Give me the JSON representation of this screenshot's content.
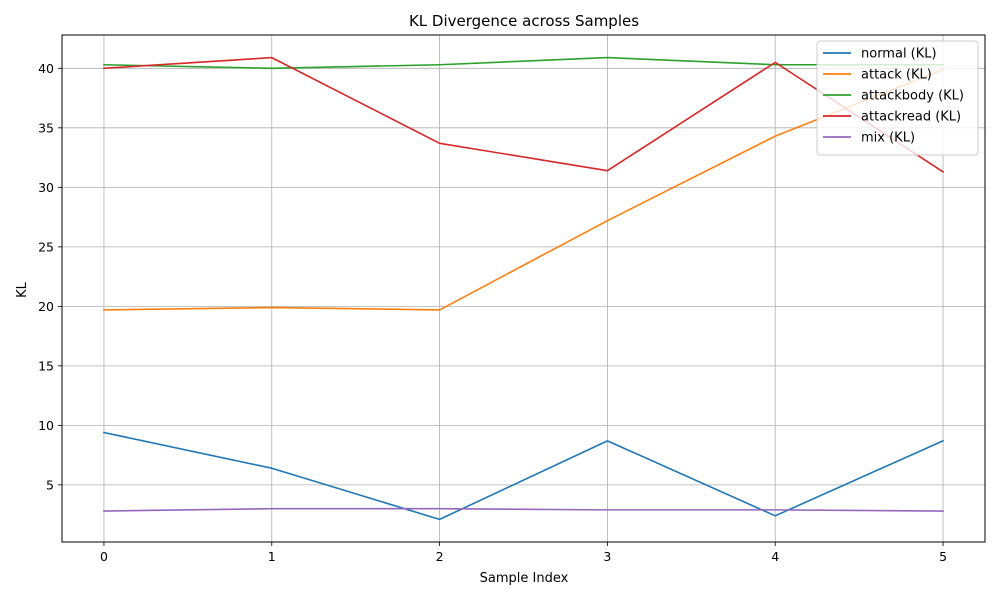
{
  "chart_data": {
    "type": "line",
    "title": "KL Divergence across Samples",
    "xlabel": "Sample Index",
    "ylabel": "KL",
    "x": [
      0,
      1,
      2,
      3,
      4,
      5
    ],
    "xlim": [
      -0.25,
      5.25
    ],
    "ylim": [
      0.2,
      42.8
    ],
    "xticks": [
      0,
      1,
      2,
      3,
      4,
      5
    ],
    "yticks": [
      5,
      10,
      15,
      20,
      25,
      30,
      35,
      40
    ],
    "grid": true,
    "legend_position": "top-right",
    "series": [
      {
        "name": "normal (KL)",
        "color": "#1f77b4",
        "values": [
          9.4,
          6.4,
          2.1,
          8.7,
          2.4,
          8.7
        ]
      },
      {
        "name": "attack (KL)",
        "color": "#ff7f0e",
        "values": [
          19.7,
          19.9,
          19.7,
          27.2,
          34.3,
          39.9
        ]
      },
      {
        "name": "attackbody (KL)",
        "color": "#2ca02c",
        "values": [
          40.3,
          40.0,
          40.3,
          40.9,
          40.3,
          40.3
        ]
      },
      {
        "name": "attackread (KL)",
        "color": "#d62728",
        "values": [
          40.0,
          40.9,
          33.7,
          31.4,
          40.5,
          31.3
        ]
      },
      {
        "name": "mix (KL)",
        "color": "#9467bd",
        "values": [
          2.8,
          3.0,
          3.0,
          2.9,
          2.9,
          2.8
        ]
      }
    ]
  }
}
